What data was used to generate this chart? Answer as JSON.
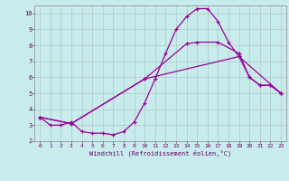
{
  "xlabel": "Windchill (Refroidissement éolien,°C)",
  "bg_color": "#c8ecec",
  "line_color": "#990099",
  "grid_color": "#b0c8c8",
  "xlim": [
    -0.5,
    23.5
  ],
  "ylim": [
    2,
    10.5
  ],
  "xticks": [
    0,
    1,
    2,
    3,
    4,
    5,
    6,
    7,
    8,
    9,
    10,
    11,
    12,
    13,
    14,
    15,
    16,
    17,
    18,
    19,
    20,
    21,
    22,
    23
  ],
  "yticks": [
    2,
    3,
    4,
    5,
    6,
    7,
    8,
    9,
    10
  ],
  "line1_x": [
    0,
    1,
    2,
    3,
    4,
    5,
    6,
    7,
    8,
    9,
    10,
    11,
    12,
    13,
    14,
    15,
    16,
    17,
    18,
    19,
    20,
    21,
    22,
    23
  ],
  "line1_y": [
    3.5,
    3.0,
    3.0,
    3.2,
    2.6,
    2.5,
    2.5,
    2.4,
    2.6,
    3.2,
    4.4,
    5.9,
    7.5,
    9.0,
    9.8,
    10.3,
    10.3,
    9.5,
    8.2,
    7.3,
    6.0,
    5.5,
    5.5,
    5.0
  ],
  "line2_x": [
    0,
    3,
    10,
    14,
    15,
    17,
    19,
    20,
    21,
    22,
    23
  ],
  "line2_y": [
    3.5,
    3.1,
    5.9,
    8.1,
    8.2,
    8.2,
    7.5,
    6.0,
    5.5,
    5.5,
    5.0
  ],
  "line3_x": [
    0,
    3,
    10,
    19,
    23
  ],
  "line3_y": [
    3.5,
    3.1,
    5.9,
    7.3,
    5.0
  ]
}
